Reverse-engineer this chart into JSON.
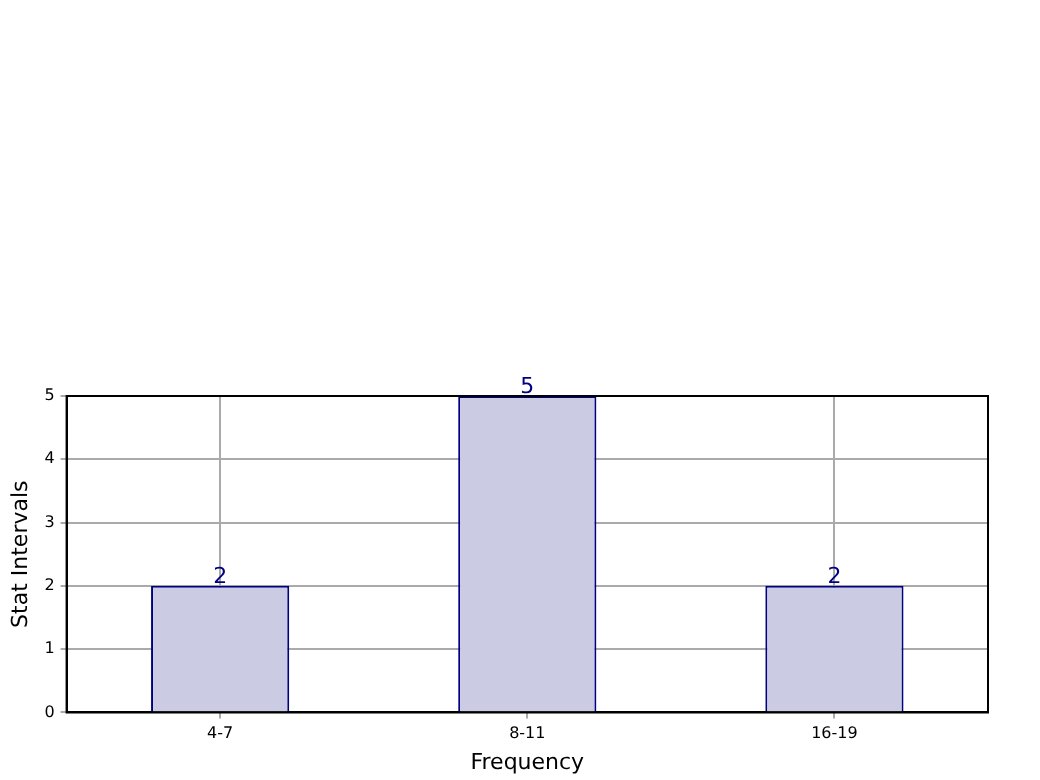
{
  "chart_data": {
    "type": "bar",
    "xlabel": "Frequency",
    "ylabel": "Stat Intervals",
    "categories": [
      "4-7",
      "8-11",
      "16-19"
    ],
    "values": [
      2,
      5,
      2
    ],
    "color": "#cbcbe3",
    "ylim": [
      0,
      5
    ],
    "yticks": [
      0,
      1,
      2,
      3,
      4,
      5
    ],
    "grid": true,
    "data_labels": true
  }
}
